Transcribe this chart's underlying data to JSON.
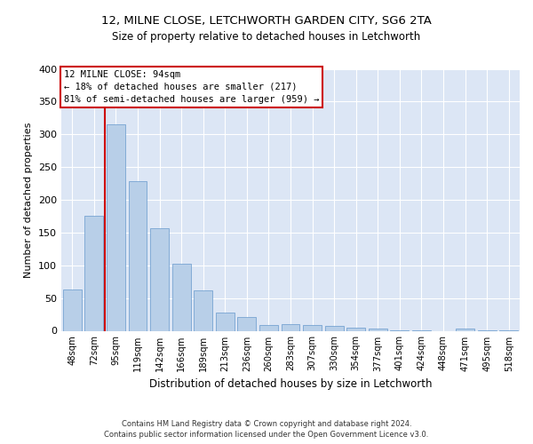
{
  "title1": "12, MILNE CLOSE, LETCHWORTH GARDEN CITY, SG6 2TA",
  "title2": "Size of property relative to detached houses in Letchworth",
  "xlabel": "Distribution of detached houses by size in Letchworth",
  "ylabel": "Number of detached properties",
  "categories": [
    "48sqm",
    "72sqm",
    "95sqm",
    "119sqm",
    "142sqm",
    "166sqm",
    "189sqm",
    "213sqm",
    "236sqm",
    "260sqm",
    "283sqm",
    "307sqm",
    "330sqm",
    "354sqm",
    "377sqm",
    "401sqm",
    "424sqm",
    "448sqm",
    "471sqm",
    "495sqm",
    "518sqm"
  ],
  "values": [
    63,
    175,
    315,
    229,
    157,
    102,
    62,
    28,
    21,
    9,
    10,
    9,
    7,
    5,
    3,
    1,
    1,
    0,
    3,
    1,
    1
  ],
  "bar_color": "#b8cfe8",
  "bar_edge_color": "#6699cc",
  "background_color": "#dce6f5",
  "grid_color": "#ffffff",
  "annotation_text_line1": "12 MILNE CLOSE: 94sqm",
  "annotation_text_line2": "← 18% of detached houses are smaller (217)",
  "annotation_text_line3": "81% of semi-detached houses are larger (959) →",
  "annotation_box_color": "#ffffff",
  "annotation_box_edge_color": "#cc0000",
  "vline_color": "#cc0000",
  "footer_line1": "Contains HM Land Registry data © Crown copyright and database right 2024.",
  "footer_line2": "Contains public sector information licensed under the Open Government Licence v3.0.",
  "ylim": [
    0,
    400
  ],
  "yticks": [
    0,
    50,
    100,
    150,
    200,
    250,
    300,
    350,
    400
  ],
  "vline_x": 1.5
}
